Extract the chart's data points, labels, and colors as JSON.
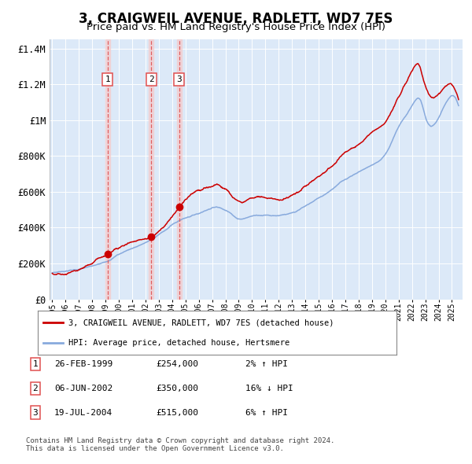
{
  "title": "3, CRAIGWEIL AVENUE, RADLETT, WD7 7ES",
  "subtitle": "Price paid vs. HM Land Registry's House Price Index (HPI)",
  "title_fontsize": 12,
  "subtitle_fontsize": 9.5,
  "plot_bg_color": "#dce9f8",
  "grid_color": "#ffffff",
  "fig_bg_color": "#ffffff",
  "transactions": [
    {
      "label": "1",
      "date_x": 1999.15,
      "price": 254000,
      "date_str": "26-FEB-1999",
      "pct": "2%",
      "dir": "↑"
    },
    {
      "label": "2",
      "date_x": 2002.43,
      "price": 350000,
      "date_str": "06-JUN-2002",
      "pct": "16%",
      "dir": "↓"
    },
    {
      "label": "3",
      "date_x": 2004.54,
      "price": 515000,
      "date_str": "19-JUL-2004",
      "pct": "6%",
      "dir": "↑"
    }
  ],
  "vline_color": "#e05050",
  "vband_color": "#f5cccc",
  "marker_color": "#cc0000",
  "red_line_color": "#cc0000",
  "blue_line_color": "#88aadd",
  "ylim": [
    0,
    1450000
  ],
  "yticks": [
    0,
    200000,
    400000,
    600000,
    800000,
    1000000,
    1200000,
    1400000
  ],
  "ytick_labels": [
    "£0",
    "£200K",
    "£400K",
    "£600K",
    "£800K",
    "£1M",
    "£1.2M",
    "£1.4M"
  ],
  "xmin": 1994.8,
  "xmax": 2025.8,
  "legend_red": "3, CRAIGWEIL AVENUE, RADLETT, WD7 7ES (detached house)",
  "legend_blue": "HPI: Average price, detached house, Hertsmere",
  "footer": "Contains HM Land Registry data © Crown copyright and database right 2024.\nThis data is licensed under the Open Government Licence v3.0.",
  "table_rows": [
    [
      "1",
      "26-FEB-1999",
      "£254,000",
      "2% ↑ HPI"
    ],
    [
      "2",
      "06-JUN-2002",
      "£350,000",
      "16% ↓ HPI"
    ],
    [
      "3",
      "19-JUL-2004",
      "£515,000",
      "6% ↑ HPI"
    ]
  ]
}
